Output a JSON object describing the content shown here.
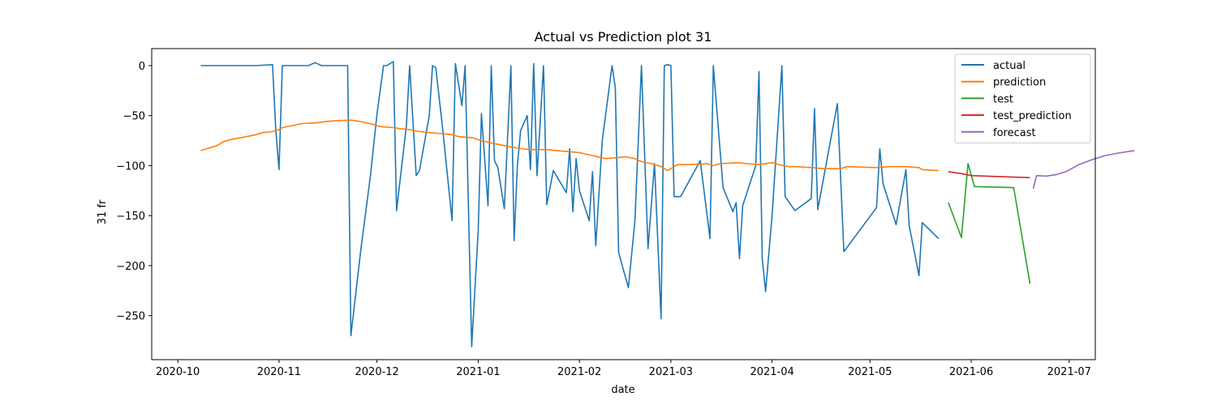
{
  "chart_data": {
    "type": "line",
    "title": "Actual vs Prediction plot 31",
    "xlabel": "date",
    "ylabel": "31 fr",
    "x_type": "date",
    "xlim": [
      "2020-09-23",
      "2021-07-09"
    ],
    "ylim": [
      -294,
      17
    ],
    "xticks": [
      "2020-10-01",
      "2020-11-01",
      "2020-12-01",
      "2021-01-01",
      "2021-02-01",
      "2021-03-01",
      "2021-04-01",
      "2021-05-01",
      "2021-06-01",
      "2021-07-01"
    ],
    "xtick_labels": [
      "2020-10",
      "2020-11",
      "2020-12",
      "2021-01",
      "2021-02",
      "2021-03",
      "2021-04",
      "2021-05",
      "2021-06",
      "2021-07"
    ],
    "yticks": [
      0,
      -50,
      -100,
      -150,
      -200,
      -250
    ],
    "ytick_labels": [
      "0",
      "−50",
      "−100",
      "−150",
      "−200",
      "−250"
    ],
    "grid": false,
    "legend_position": "top-right",
    "series": [
      {
        "name": "actual",
        "color": "#1f77b4",
        "points": [
          [
            "2020-10-08",
            0
          ],
          [
            "2020-10-25",
            0
          ],
          [
            "2020-10-30",
            1
          ],
          [
            "2020-10-31",
            -64
          ],
          [
            "2020-11-01",
            -104
          ],
          [
            "2020-11-02",
            0
          ],
          [
            "2020-11-10",
            0
          ],
          [
            "2020-11-12",
            3
          ],
          [
            "2020-11-14",
            0
          ],
          [
            "2020-11-22",
            0
          ],
          [
            "2020-11-23",
            -270
          ],
          [
            "2020-11-26",
            -185
          ],
          [
            "2020-11-29",
            -110
          ],
          [
            "2020-12-01",
            -48
          ],
          [
            "2020-12-03",
            0
          ],
          [
            "2020-12-04",
            0
          ],
          [
            "2020-12-06",
            4
          ],
          [
            "2020-12-07",
            -145
          ],
          [
            "2020-12-10",
            -60
          ],
          [
            "2020-12-11",
            0
          ],
          [
            "2020-12-13",
            -110
          ],
          [
            "2020-12-14",
            -105
          ],
          [
            "2020-12-17",
            -50
          ],
          [
            "2020-12-18",
            0
          ],
          [
            "2020-12-19",
            -2
          ],
          [
            "2020-12-21",
            -60
          ],
          [
            "2020-12-24",
            -155
          ],
          [
            "2020-12-25",
            2
          ],
          [
            "2020-12-27",
            -40
          ],
          [
            "2020-12-28",
            0
          ],
          [
            "2020-12-30",
            -281
          ],
          [
            "2021-01-01",
            -165
          ],
          [
            "2021-01-02",
            -48
          ],
          [
            "2021-01-04",
            -140
          ],
          [
            "2021-01-05",
            0
          ],
          [
            "2021-01-06",
            -95
          ],
          [
            "2021-01-07",
            -102
          ],
          [
            "2021-01-09",
            -143
          ],
          [
            "2021-01-11",
            0
          ],
          [
            "2021-01-12",
            -175
          ],
          [
            "2021-01-13",
            -100
          ],
          [
            "2021-01-14",
            -65
          ],
          [
            "2021-01-16",
            -50
          ],
          [
            "2021-01-17",
            -104
          ],
          [
            "2021-01-18",
            2
          ],
          [
            "2021-01-19",
            -110
          ],
          [
            "2021-01-21",
            0
          ],
          [
            "2021-01-22",
            -139
          ],
          [
            "2021-01-24",
            -105
          ],
          [
            "2021-01-28",
            -127
          ],
          [
            "2021-01-29",
            -83
          ],
          [
            "2021-01-30",
            -146
          ],
          [
            "2021-01-31",
            -93
          ],
          [
            "2021-02-01",
            -125
          ],
          [
            "2021-02-04",
            -155
          ],
          [
            "2021-02-05",
            -106
          ],
          [
            "2021-02-06",
            -180
          ],
          [
            "2021-02-08",
            -75
          ],
          [
            "2021-02-11",
            0
          ],
          [
            "2021-02-12",
            -22
          ],
          [
            "2021-02-13",
            -187
          ],
          [
            "2021-02-16",
            -222
          ],
          [
            "2021-02-18",
            -155
          ],
          [
            "2021-02-20",
            0
          ],
          [
            "2021-02-22",
            -183
          ],
          [
            "2021-02-24",
            -98
          ],
          [
            "2021-02-26",
            -253
          ],
          [
            "2021-02-27",
            0
          ],
          [
            "2021-02-28",
            1
          ],
          [
            "2021-03-01",
            0
          ],
          [
            "2021-03-02",
            -131
          ],
          [
            "2021-03-04",
            -131
          ],
          [
            "2021-03-10",
            -95
          ],
          [
            "2021-03-13",
            -173
          ],
          [
            "2021-03-14",
            0
          ],
          [
            "2021-03-17",
            -122
          ],
          [
            "2021-03-20",
            -146
          ],
          [
            "2021-03-21",
            -137
          ],
          [
            "2021-03-22",
            -193
          ],
          [
            "2021-03-23",
            -140
          ],
          [
            "2021-03-27",
            -100
          ],
          [
            "2021-03-28",
            -6
          ],
          [
            "2021-03-29",
            -193
          ],
          [
            "2021-03-30",
            -226
          ],
          [
            "2021-04-01",
            -150
          ],
          [
            "2021-04-04",
            0
          ],
          [
            "2021-04-05",
            -131
          ],
          [
            "2021-04-08",
            -145
          ],
          [
            "2021-04-13",
            -133
          ],
          [
            "2021-04-14",
            -43
          ],
          [
            "2021-04-15",
            -144
          ],
          [
            "2021-04-21",
            -38
          ],
          [
            "2021-04-23",
            -186
          ],
          [
            "2021-05-03",
            -142
          ],
          [
            "2021-05-04",
            -83
          ],
          [
            "2021-05-05",
            -118
          ],
          [
            "2021-05-09",
            -159
          ],
          [
            "2021-05-12",
            -104
          ],
          [
            "2021-05-13",
            -160
          ],
          [
            "2021-05-16",
            -210
          ],
          [
            "2021-05-17",
            -157
          ],
          [
            "2021-05-22",
            -173
          ]
        ]
      },
      {
        "name": "prediction",
        "color": "#ff7f0e",
        "points": [
          [
            "2020-10-08",
            -85
          ],
          [
            "2020-10-13",
            -80
          ],
          [
            "2020-10-15",
            -76
          ],
          [
            "2020-10-17",
            -74
          ],
          [
            "2020-10-22",
            -71
          ],
          [
            "2020-10-25",
            -69
          ],
          [
            "2020-10-27",
            -67
          ],
          [
            "2020-10-30",
            -66
          ],
          [
            "2020-11-01",
            -64
          ],
          [
            "2020-11-02",
            -62
          ],
          [
            "2020-11-05",
            -60
          ],
          [
            "2020-11-08",
            -58
          ],
          [
            "2020-11-13",
            -57
          ],
          [
            "2020-11-15",
            -56
          ],
          [
            "2020-11-19",
            -55
          ],
          [
            "2020-11-23",
            -54.5
          ],
          [
            "2020-11-26",
            -56
          ],
          [
            "2020-11-30",
            -59
          ],
          [
            "2020-12-02",
            -61
          ],
          [
            "2020-12-06",
            -62
          ],
          [
            "2020-12-08",
            -63
          ],
          [
            "2020-12-11",
            -64
          ],
          [
            "2020-12-14",
            -66
          ],
          [
            "2020-12-17",
            -67
          ],
          [
            "2020-12-21",
            -68
          ],
          [
            "2020-12-24",
            -69
          ],
          [
            "2020-12-26",
            -71
          ],
          [
            "2020-12-30",
            -72
          ],
          [
            "2021-01-02",
            -75
          ],
          [
            "2021-01-06",
            -78
          ],
          [
            "2021-01-09",
            -80
          ],
          [
            "2021-01-14",
            -83
          ],
          [
            "2021-01-17",
            -84
          ],
          [
            "2021-01-22",
            -84
          ],
          [
            "2021-01-25",
            -85
          ],
          [
            "2021-01-29",
            -86
          ],
          [
            "2021-02-01",
            -87
          ],
          [
            "2021-02-05",
            -90
          ],
          [
            "2021-02-09",
            -93
          ],
          [
            "2021-02-13",
            -92
          ],
          [
            "2021-02-15",
            -91
          ],
          [
            "2021-02-18",
            -93
          ],
          [
            "2021-02-20",
            -96
          ],
          [
            "2021-02-23",
            -98
          ],
          [
            "2021-02-26",
            -101
          ],
          [
            "2021-02-28",
            -105
          ],
          [
            "2021-03-01",
            -103
          ],
          [
            "2021-03-03",
            -99
          ],
          [
            "2021-03-07",
            -99
          ],
          [
            "2021-03-12",
            -98
          ],
          [
            "2021-03-14",
            -100
          ],
          [
            "2021-03-16",
            -98
          ],
          [
            "2021-03-22",
            -97
          ],
          [
            "2021-03-24",
            -98
          ],
          [
            "2021-03-28",
            -99
          ],
          [
            "2021-04-01",
            -97
          ],
          [
            "2021-04-03",
            -99
          ],
          [
            "2021-04-06",
            -101
          ],
          [
            "2021-04-08",
            -101
          ],
          [
            "2021-04-13",
            -102
          ],
          [
            "2021-04-17",
            -103
          ],
          [
            "2021-04-22",
            -103
          ],
          [
            "2021-04-24",
            -101
          ],
          [
            "2021-05-03",
            -102
          ],
          [
            "2021-05-07",
            -101
          ],
          [
            "2021-05-12",
            -101
          ],
          [
            "2021-05-16",
            -102
          ],
          [
            "2021-05-17",
            -104
          ],
          [
            "2021-05-22",
            -105
          ]
        ]
      },
      {
        "name": "test",
        "color": "#2ca02c",
        "points": [
          [
            "2021-05-25",
            -137
          ],
          [
            "2021-05-29",
            -172
          ],
          [
            "2021-05-31",
            -98
          ],
          [
            "2021-06-02",
            -121
          ],
          [
            "2021-06-14",
            -122
          ],
          [
            "2021-06-19",
            -218
          ]
        ]
      },
      {
        "name": "test_prediction",
        "color": "#d62728",
        "points": [
          [
            "2021-05-25",
            -106
          ],
          [
            "2021-05-29",
            -108
          ],
          [
            "2021-06-01",
            -110
          ],
          [
            "2021-06-19",
            -112
          ]
        ]
      },
      {
        "name": "forecast",
        "color": "#9467bd",
        "points": [
          [
            "2021-06-20",
            -123
          ],
          [
            "2021-06-21",
            -110
          ],
          [
            "2021-06-24",
            -110.5
          ],
          [
            "2021-06-27",
            -109
          ],
          [
            "2021-06-30",
            -106
          ],
          [
            "2021-07-04",
            -99
          ],
          [
            "2021-07-08",
            -94
          ],
          [
            "2021-07-12",
            -90
          ],
          [
            "2021-07-16",
            -87.5
          ],
          [
            "2021-07-21",
            -85
          ]
        ]
      }
    ]
  }
}
